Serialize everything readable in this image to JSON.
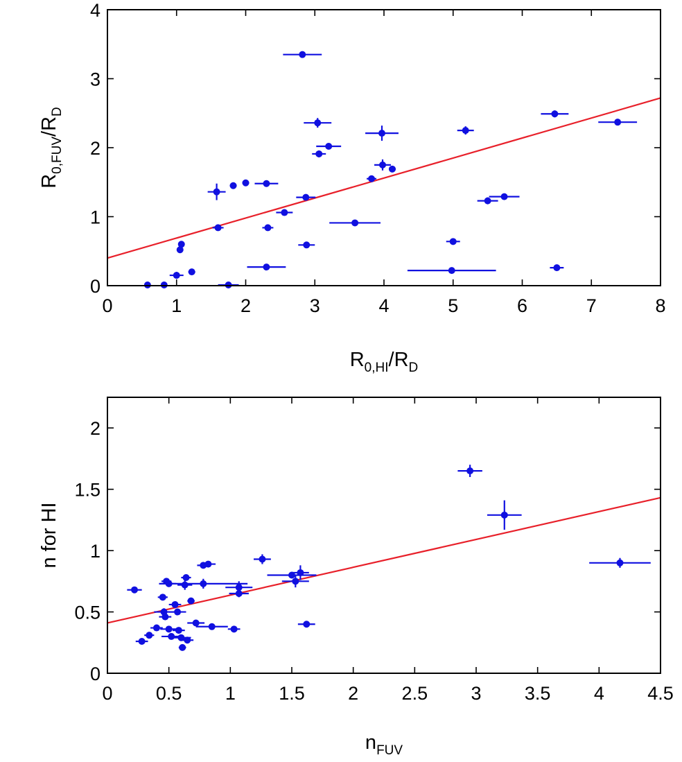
{
  "colors": {
    "points": "#1010e0",
    "fit_line": "#e8202a",
    "axes": "#000000"
  },
  "chart_data": [
    {
      "type": "scatter",
      "title": "",
      "xlabel": {
        "main": "R",
        "sub": "0,HI",
        "tail": "/R",
        "tail_sub": "D"
      },
      "ylabel": {
        "main": "R",
        "sub": "0,FUV",
        "tail": "/R",
        "tail_sub": "D"
      },
      "xlim": [
        0,
        8
      ],
      "ylim": [
        0,
        4
      ],
      "xticks": [
        0,
        1,
        2,
        3,
        4,
        5,
        6,
        7,
        8
      ],
      "xtick_labels": [
        "0",
        "1",
        "2",
        "3",
        "4",
        "5",
        "6",
        "7",
        "8"
      ],
      "yticks": [
        0,
        1,
        2,
        3,
        4
      ],
      "ytick_labels": [
        "0",
        "1",
        "2",
        "3",
        "4"
      ],
      "grid": false,
      "fit_line": {
        "intercept": 0.4,
        "slope": 0.29
      },
      "points": [
        {
          "x": 0.58,
          "y": 0.01,
          "xerr": 0,
          "yerr": 0
        },
        {
          "x": 0.82,
          "y": 0.01,
          "xerr": 0,
          "yerr": 0
        },
        {
          "x": 1.05,
          "y": 0.52,
          "xerr": 0,
          "yerr": 0
        },
        {
          "x": 1.07,
          "y": 0.6,
          "xerr": 0,
          "yerr": 0
        },
        {
          "x": 1.0,
          "y": 0.15,
          "xerr": 0.1,
          "yerr": 0.05
        },
        {
          "x": 1.22,
          "y": 0.2,
          "xerr": 0.05,
          "yerr": 0
        },
        {
          "x": 1.6,
          "y": 0.84,
          "xerr": 0.08,
          "yerr": 0
        },
        {
          "x": 1.58,
          "y": 1.36,
          "xerr": 0.13,
          "yerr": 0.12
        },
        {
          "x": 1.75,
          "y": 0.01,
          "xerr": 0.15,
          "yerr": 0
        },
        {
          "x": 1.82,
          "y": 1.45,
          "xerr": 0.05,
          "yerr": 0
        },
        {
          "x": 2.0,
          "y": 1.49,
          "xerr": 0.05,
          "yerr": 0
        },
        {
          "x": 2.3,
          "y": 1.48,
          "xerr": 0.17,
          "yerr": 0
        },
        {
          "x": 2.32,
          "y": 0.84,
          "xerr": 0.08,
          "yerr": 0
        },
        {
          "x": 2.3,
          "y": 0.27,
          "xerr": 0.28,
          "yerr": 0
        },
        {
          "x": 2.56,
          "y": 1.06,
          "xerr": 0.12,
          "yerr": 0
        },
        {
          "x": 2.82,
          "y": 3.35,
          "xerr": 0.28,
          "yerr": 0
        },
        {
          "x": 2.87,
          "y": 1.28,
          "xerr": 0.14,
          "yerr": 0
        },
        {
          "x": 2.88,
          "y": 0.59,
          "xerr": 0.12,
          "yerr": 0
        },
        {
          "x": 3.04,
          "y": 2.36,
          "xerr": 0.2,
          "yerr": 0.07
        },
        {
          "x": 3.06,
          "y": 1.91,
          "xerr": 0.1,
          "yerr": 0.05
        },
        {
          "x": 3.2,
          "y": 2.02,
          "xerr": 0.18,
          "yerr": 0
        },
        {
          "x": 3.58,
          "y": 0.91,
          "xerr": 0.37,
          "yerr": 0
        },
        {
          "x": 3.82,
          "y": 1.55,
          "xerr": 0.07,
          "yerr": 0
        },
        {
          "x": 3.97,
          "y": 2.21,
          "xerr": 0.24,
          "yerr": 0.11
        },
        {
          "x": 3.98,
          "y": 1.75,
          "xerr": 0.12,
          "yerr": 0.08
        },
        {
          "x": 4.12,
          "y": 1.69,
          "xerr": 0.05,
          "yerr": 0
        },
        {
          "x": 4.98,
          "y": 0.22,
          "xerr": 0.64,
          "yerr": 0
        },
        {
          "x": 5.0,
          "y": 0.64,
          "xerr": 0.1,
          "yerr": 0
        },
        {
          "x": 5.18,
          "y": 2.25,
          "xerr": 0.12,
          "yerr": 0.06
        },
        {
          "x": 5.5,
          "y": 1.23,
          "xerr": 0.15,
          "yerr": 0.05
        },
        {
          "x": 5.74,
          "y": 1.29,
          "xerr": 0.22,
          "yerr": 0
        },
        {
          "x": 6.47,
          "y": 2.49,
          "xerr": 0.2,
          "yerr": 0.05
        },
        {
          "x": 6.5,
          "y": 0.26,
          "xerr": 0.1,
          "yerr": 0
        },
        {
          "x": 7.38,
          "y": 2.37,
          "xerr": 0.28,
          "yerr": 0
        }
      ]
    },
    {
      "type": "scatter",
      "title": "",
      "xlabel": {
        "main": "n",
        "sub": "FUV",
        "tail": "",
        "tail_sub": ""
      },
      "ylabel": {
        "main": "n for HI",
        "sub": "",
        "tail": "",
        "tail_sub": ""
      },
      "xlim": [
        0,
        4.5
      ],
      "ylim": [
        0,
        2.25
      ],
      "xticks": [
        0,
        0.5,
        1,
        1.5,
        2,
        2.5,
        3,
        3.5,
        4,
        4.5
      ],
      "xtick_labels": [
        "0",
        "0.5",
        "1",
        "1.5",
        "2",
        "2.5",
        "3",
        "3.5",
        "4",
        "4.5"
      ],
      "yticks": [
        0,
        0.5,
        1,
        1.5,
        2
      ],
      "ytick_labels": [
        "0",
        "0.5",
        "1",
        "1.5",
        "2"
      ],
      "grid": false,
      "fit_line": {
        "intercept": 0.41,
        "slope": 0.227
      },
      "points": [
        {
          "x": 0.22,
          "y": 0.68,
          "xerr": 0.06,
          "yerr": 0
        },
        {
          "x": 0.28,
          "y": 0.26,
          "xerr": 0.05,
          "yerr": 0
        },
        {
          "x": 0.34,
          "y": 0.31,
          "xerr": 0.04,
          "yerr": 0
        },
        {
          "x": 0.4,
          "y": 0.37,
          "xerr": 0.05,
          "yerr": 0
        },
        {
          "x": 0.45,
          "y": 0.62,
          "xerr": 0.04,
          "yerr": 0
        },
        {
          "x": 0.46,
          "y": 0.5,
          "xerr": 0.08,
          "yerr": 0.03
        },
        {
          "x": 0.47,
          "y": 0.46,
          "xerr": 0.05,
          "yerr": 0
        },
        {
          "x": 0.48,
          "y": 0.75,
          "xerr": 0.04,
          "yerr": 0
        },
        {
          "x": 0.5,
          "y": 0.73,
          "xerr": 0.06,
          "yerr": 0
        },
        {
          "x": 0.5,
          "y": 0.36,
          "xerr": 0.07,
          "yerr": 0
        },
        {
          "x": 0.52,
          "y": 0.3,
          "xerr": 0.08,
          "yerr": 0
        },
        {
          "x": 0.55,
          "y": 0.56,
          "xerr": 0.05,
          "yerr": 0
        },
        {
          "x": 0.57,
          "y": 0.5,
          "xerr": 0.07,
          "yerr": 0
        },
        {
          "x": 0.58,
          "y": 0.35,
          "xerr": 0.05,
          "yerr": 0
        },
        {
          "x": 0.6,
          "y": 0.29,
          "xerr": 0.08,
          "yerr": 0
        },
        {
          "x": 0.61,
          "y": 0.21,
          "xerr": 0.03,
          "yerr": 0.02
        },
        {
          "x": 0.63,
          "y": 0.72,
          "xerr": 0.06,
          "yerr": 0.04
        },
        {
          "x": 0.64,
          "y": 0.78,
          "xerr": 0.04,
          "yerr": 0
        },
        {
          "x": 0.65,
          "y": 0.27,
          "xerr": 0.05,
          "yerr": 0
        },
        {
          "x": 0.68,
          "y": 0.59,
          "xerr": 0.03,
          "yerr": 0
        },
        {
          "x": 0.72,
          "y": 0.41,
          "xerr": 0.07,
          "yerr": 0
        },
        {
          "x": 0.78,
          "y": 0.73,
          "xerr": 0.36,
          "yerr": 0.04
        },
        {
          "x": 0.78,
          "y": 0.88,
          "xerr": 0.05,
          "yerr": 0
        },
        {
          "x": 0.82,
          "y": 0.89,
          "xerr": 0.06,
          "yerr": 0
        },
        {
          "x": 0.85,
          "y": 0.38,
          "xerr": 0.13,
          "yerr": 0
        },
        {
          "x": 1.03,
          "y": 0.36,
          "xerr": 0.05,
          "yerr": 0
        },
        {
          "x": 1.07,
          "y": 0.7,
          "xerr": 0.11,
          "yerr": 0.05
        },
        {
          "x": 1.07,
          "y": 0.65,
          "xerr": 0.08,
          "yerr": 0.03
        },
        {
          "x": 1.26,
          "y": 0.93,
          "xerr": 0.07,
          "yerr": 0.04
        },
        {
          "x": 1.5,
          "y": 0.8,
          "xerr": 0.2,
          "yerr": 0
        },
        {
          "x": 1.53,
          "y": 0.75,
          "xerr": 0.11,
          "yerr": 0.05
        },
        {
          "x": 1.57,
          "y": 0.82,
          "xerr": 0.07,
          "yerr": 0.06
        },
        {
          "x": 1.62,
          "y": 0.4,
          "xerr": 0.07,
          "yerr": 0
        },
        {
          "x": 2.95,
          "y": 1.65,
          "xerr": 0.1,
          "yerr": 0.05
        },
        {
          "x": 3.23,
          "y": 1.29,
          "xerr": 0.14,
          "yerr": 0.12
        },
        {
          "x": 4.17,
          "y": 0.9,
          "xerr": 0.25,
          "yerr": 0.04
        }
      ]
    }
  ]
}
